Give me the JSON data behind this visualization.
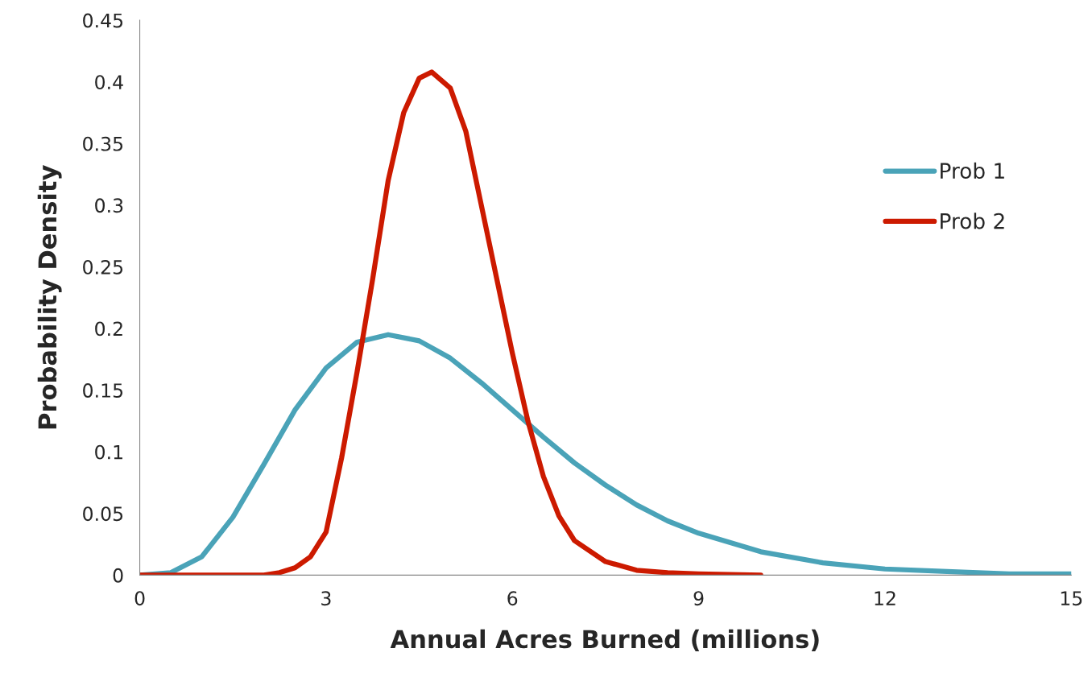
{
  "chart_data": {
    "type": "line",
    "xlabel": "Annual Acres Burned (millions)",
    "ylabel": "Probability Density",
    "xlim": [
      0,
      15
    ],
    "xticks": [
      0,
      3,
      6,
      9,
      12,
      15
    ],
    "ylim": [
      0,
      0.45
    ],
    "yticks": [
      0,
      0.05,
      0.1,
      0.15,
      0.2,
      0.25,
      0.3,
      0.35,
      0.4,
      0.45
    ],
    "grid": false,
    "legend": "right",
    "marker": "none",
    "line_style": "solid",
    "series": [
      {
        "name": "Prob 1",
        "color": "#4aa3b8",
        "x": [
          0,
          0.5,
          1,
          1.5,
          2,
          2.5,
          3,
          3.5,
          4,
          4.5,
          5,
          5.5,
          6,
          6.5,
          7,
          7.5,
          8,
          8.5,
          9,
          10,
          11,
          12,
          13,
          14,
          15
        ],
        "values": [
          0,
          0.002,
          0.015,
          0.047,
          0.09,
          0.134,
          0.168,
          0.189,
          0.195,
          0.19,
          0.176,
          0.156,
          0.134,
          0.112,
          0.091,
          0.073,
          0.057,
          0.044,
          0.034,
          0.019,
          0.01,
          0.005,
          0.003,
          0.001,
          0.001
        ]
      },
      {
        "name": "Prob 2",
        "color": "#cc1a00",
        "x": [
          0,
          1,
          2,
          2.25,
          2.5,
          2.75,
          3,
          3.25,
          3.5,
          3.75,
          4,
          4.25,
          4.5,
          4.7,
          5,
          5.25,
          5.5,
          5.75,
          6,
          6.25,
          6.5,
          6.75,
          7,
          7.5,
          8,
          8.5,
          9,
          10
        ],
        "values": [
          0,
          0,
          0,
          0.002,
          0.006,
          0.015,
          0.035,
          0.095,
          0.165,
          0.24,
          0.32,
          0.375,
          0.403,
          0.408,
          0.395,
          0.36,
          0.3,
          0.24,
          0.18,
          0.125,
          0.08,
          0.048,
          0.028,
          0.011,
          0.004,
          0.002,
          0.001,
          0
        ]
      }
    ]
  }
}
